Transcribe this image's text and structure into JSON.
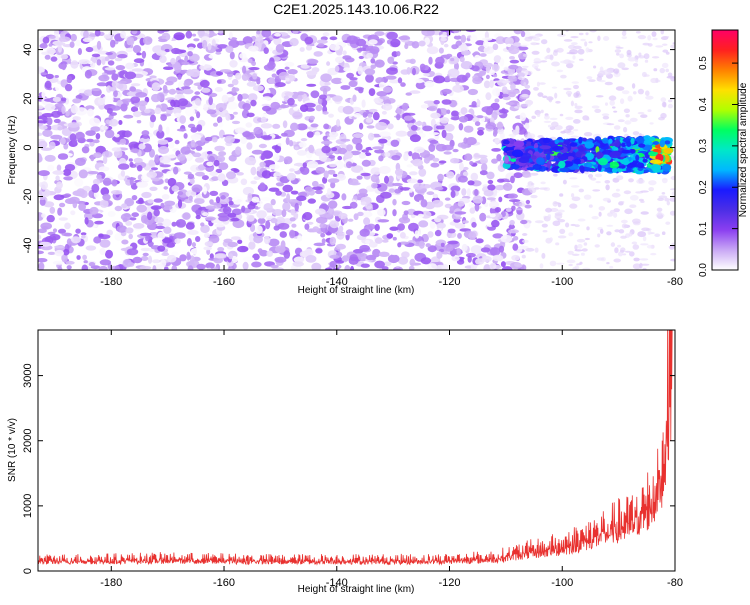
{
  "title": "C2E1.2025.143.10.06.R22",
  "colors": {
    "snr_line": "#e8312f",
    "colormap": [
      "#ffffff",
      "#c9a8f5",
      "#8b3ff0",
      "#4c2ee6",
      "#1a1aff",
      "#00b8ff",
      "#00e8c8",
      "#00ff60",
      "#b0ff00",
      "#ffe000",
      "#ff8000",
      "#ff2020",
      "#ff0066"
    ]
  },
  "chart_data": [
    {
      "type": "heatmap",
      "xlabel": "Height of straight line (km)",
      "ylabel": "Frequency (Hz)",
      "xlim": [
        -193,
        -80
      ],
      "ylim": [
        -50,
        48
      ],
      "xticks": [
        -180,
        -160,
        -140,
        -120,
        -100,
        -80
      ],
      "yticks": [
        -40,
        -20,
        0,
        20,
        40
      ],
      "colorbar": {
        "label": "Normalized spectral amplitude",
        "range": [
          0,
          0.58
        ],
        "ticks": [
          0,
          0.1,
          0.2,
          0.3,
          0.4,
          0.5
        ]
      },
      "features": {
        "noise_region_x": [
          -193,
          -108
        ],
        "noise_amplitude": [
          0.0,
          0.09
        ],
        "signal_band_x": [
          -110,
          -81
        ],
        "signal_center_freq_hz": -3,
        "signal_width_hz": 14,
        "signal_peak_amplitude": 0.55,
        "signal_peak_x": -81
      }
    },
    {
      "type": "line",
      "xlabel": "Height of straight line (km)",
      "ylabel": "SNR (10 * v/v)",
      "xlim": [
        -193,
        -80
      ],
      "ylim": [
        0,
        3700
      ],
      "xticks": [
        -180,
        -160,
        -140,
        -120,
        -100,
        -80
      ],
      "yticks": [
        0,
        1000,
        2000,
        3000
      ],
      "series": [
        {
          "x": [
            -193,
            -180,
            -170,
            -160,
            -150,
            -140,
            -130,
            -120,
            -112,
            -108,
            -104,
            -100,
            -96,
            -92,
            -88,
            -86,
            -84,
            -83,
            -82,
            -81.5,
            -81,
            -80.5
          ],
          "values": [
            180,
            190,
            200,
            190,
            180,
            185,
            180,
            190,
            220,
            300,
            360,
            420,
            550,
            700,
            850,
            1000,
            1200,
            1500,
            1900,
            2600,
            3300,
            3700
          ]
        }
      ]
    }
  ]
}
